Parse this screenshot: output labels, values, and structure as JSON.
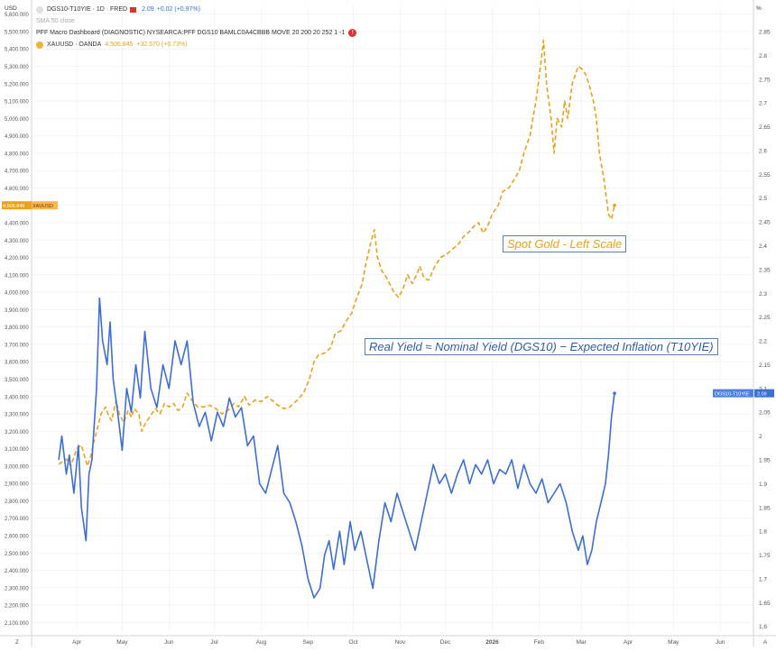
{
  "legend": {
    "main_symbol": "DGS10-T10YIE · 1D · FRED",
    "main_value": "2.09",
    "main_change": "+0.02 (+0.97%)",
    "sma_label": "SMA 50 close",
    "indicator_label": "PFF Macro Dashboard (DIAGNOSTIC) NYSEARCA:PFF DGS10 BAMLC0A4CBBB MOVE 20 200 20 252 1 -1",
    "indicator_error": "!",
    "xau_symbol": "XAUUSD · OANDA",
    "xau_value": "4,506.845",
    "xau_change": "+32.570 (+0.73%)"
  },
  "annotations": {
    "gold": "Spot Gold - Left Scale",
    "real_yield": "Real Yield ≈ Nominal Yield (DGS10) − Expected Inflation (T10YIE)"
  },
  "colors": {
    "gold": "#e8a21c",
    "real_yield": "#3b6fd6",
    "axis_text": "#555555",
    "grid": "#eeeeee"
  },
  "chart_data": {
    "type": "line",
    "left_axis": {
      "unit": "USD",
      "ticks": [
        "2,100.000",
        "2,200.000",
        "2,300.000",
        "2,400.000",
        "2,500.000",
        "2,600.000",
        "2,700.000",
        "2,800.000",
        "2,900.000",
        "3,000.000",
        "3,100.000",
        "3,200.000",
        "3,300.000",
        "3,400.000",
        "3,500.000",
        "3,600.000",
        "3,700.000",
        "3,800.000",
        "3,900.000",
        "4,000.000",
        "4,100.000",
        "4,200.000",
        "4,300.000",
        "4,400.000",
        "4,500.000",
        "4,600.000",
        "4,700.000",
        "4,800.000",
        "4,900.000",
        "5,000.000",
        "5,100.000",
        "5,200.000",
        "5,300.000",
        "5,400.000",
        "5,500.000",
        "5,600.000"
      ],
      "range": [
        2050,
        5650
      ]
    },
    "right_axis": {
      "unit": "%",
      "ticks": [
        "1.6",
        "1.65",
        "1.7",
        "1.75",
        "1.8",
        "1.85",
        "1.9",
        "1.95",
        "2",
        "2.05",
        "2.1",
        "2.15",
        "2.2",
        "2.25",
        "2.3",
        "2.35",
        "2.4",
        "2.45",
        "2.5",
        "2.55",
        "2.6",
        "2.65",
        "2.7",
        "2.75",
        "2.8",
        "2.85"
      ],
      "range": [
        1.59,
        2.905
      ]
    },
    "x_axis": {
      "ticks": [
        "Apr",
        "May",
        "Jun",
        "Jul",
        "Aug",
        "Sep",
        "Oct",
        "Nov",
        "Dec",
        "2026",
        "Feb",
        "Mar",
        "Apr",
        "May",
        "Jun"
      ],
      "left_label": "Z",
      "right_label": "A"
    },
    "series": [
      {
        "name": "XAUUSD",
        "axis": "left",
        "style": "dashed",
        "last_label": "4,506.845",
        "tag": "XAUUSD",
        "x": [
          "2025-03-20",
          "2025-03-25",
          "2025-03-28",
          "2025-04-01",
          "2025-04-04",
          "2025-04-08",
          "2025-04-10",
          "2025-04-12",
          "2025-04-15",
          "2025-04-17",
          "2025-04-20",
          "2025-04-22",
          "2025-04-24",
          "2025-04-27",
          "2025-04-29",
          "2025-05-02",
          "2025-05-05",
          "2025-05-07",
          "2025-05-09",
          "2025-05-12",
          "2025-05-14",
          "2025-05-16",
          "2025-05-19",
          "2025-05-23",
          "2025-05-26",
          "2025-05-29",
          "2025-06-01",
          "2025-06-04",
          "2025-06-07",
          "2025-06-10",
          "2025-06-13",
          "2025-06-16",
          "2025-06-20",
          "2025-06-24",
          "2025-06-28",
          "2025-07-02",
          "2025-07-06",
          "2025-07-10",
          "2025-07-14",
          "2025-07-17",
          "2025-07-21",
          "2025-07-24",
          "2025-07-28",
          "2025-08-01",
          "2025-08-05",
          "2025-08-08",
          "2025-08-12",
          "2025-08-16",
          "2025-08-20",
          "2025-08-25",
          "2025-08-29",
          "2025-09-02",
          "2025-09-05",
          "2025-09-08",
          "2025-09-12",
          "2025-09-16",
          "2025-09-19",
          "2025-09-23",
          "2025-09-26",
          "2025-09-30",
          "2025-10-03",
          "2025-10-07",
          "2025-10-09",
          "2025-10-13",
          "2025-10-15",
          "2025-10-17",
          "2025-10-20",
          "2025-10-22",
          "2025-10-25",
          "2025-10-28",
          "2025-10-31",
          "2025-11-03",
          "2025-11-06",
          "2025-11-09",
          "2025-11-12",
          "2025-11-14",
          "2025-11-17",
          "2025-11-20",
          "2025-11-24",
          "2025-11-28",
          "2025-12-02",
          "2025-12-06",
          "2025-12-10",
          "2025-12-13",
          "2025-12-17",
          "2025-12-20",
          "2025-12-23",
          "2025-12-26",
          "2025-12-29",
          "2026-01-01",
          "2026-01-05",
          "2026-01-08",
          "2026-01-12",
          "2026-01-15",
          "2026-01-19",
          "2026-01-22",
          "2026-01-26",
          "2026-01-28",
          "2026-01-30",
          "2026-02-02",
          "2026-02-04",
          "2026-02-06",
          "2026-02-09",
          "2026-02-11",
          "2026-02-13",
          "2026-02-16",
          "2026-02-18",
          "2026-02-20",
          "2026-02-23",
          "2026-02-25",
          "2026-02-27",
          "2026-03-02",
          "2026-03-04",
          "2026-03-06",
          "2026-03-09",
          "2026-03-11",
          "2026-03-13",
          "2026-03-16",
          "2026-03-19",
          "2026-03-21",
          "2026-03-23"
        ],
        "y": [
          3010,
          3040,
          3000,
          3100,
          3120,
          3000,
          3050,
          3130,
          3230,
          3300,
          3340,
          3290,
          3260,
          3380,
          3300,
          3250,
          3320,
          3280,
          3330,
          3300,
          3200,
          3240,
          3280,
          3330,
          3300,
          3360,
          3340,
          3360,
          3320,
          3340,
          3420,
          3380,
          3340,
          3340,
          3350,
          3330,
          3300,
          3320,
          3360,
          3340,
          3400,
          3350,
          3380,
          3370,
          3400,
          3380,
          3350,
          3330,
          3340,
          3380,
          3420,
          3500,
          3600,
          3640,
          3650,
          3680,
          3760,
          3780,
          3830,
          3880,
          3960,
          4050,
          4150,
          4300,
          4360,
          4200,
          4120,
          4100,
          4050,
          4000,
          3970,
          4020,
          4100,
          4050,
          4100,
          4150,
          4080,
          4070,
          4150,
          4200,
          4220,
          4250,
          4280,
          4320,
          4350,
          4380,
          4400,
          4340,
          4380,
          4450,
          4500,
          4580,
          4600,
          4640,
          4700,
          4800,
          4900,
          5000,
          5100,
          5300,
          5450,
          5200,
          5000,
          4800,
          5000,
          4950,
          5100,
          5000,
          5200,
          5250,
          5300,
          5280,
          5250,
          5200,
          5100,
          5000,
          4800,
          4650,
          4450,
          4420,
          4500
        ]
      },
      {
        "name": "DGS10-T10YIE",
        "axis": "right",
        "style": "solid",
        "last_label": "2.09",
        "tag": "DGS10-T10YIE",
        "x": [
          "2025-03-20",
          "2025-03-22",
          "2025-03-25",
          "2025-03-27",
          "2025-03-30",
          "2025-04-02",
          "2025-04-04",
          "2025-04-07",
          "2025-04-09",
          "2025-04-11",
          "2025-04-14",
          "2025-04-16",
          "2025-04-18",
          "2025-04-21",
          "2025-04-23",
          "2025-04-25",
          "2025-04-28",
          "2025-05-01",
          "2025-05-04",
          "2025-05-07",
          "2025-05-10",
          "2025-05-13",
          "2025-05-16",
          "2025-05-20",
          "2025-05-24",
          "2025-05-28",
          "2025-06-01",
          "2025-06-05",
          "2025-06-09",
          "2025-06-13",
          "2025-06-17",
          "2025-06-21",
          "2025-06-25",
          "2025-06-29",
          "2025-07-03",
          "2025-07-07",
          "2025-07-11",
          "2025-07-15",
          "2025-07-19",
          "2025-07-23",
          "2025-07-27",
          "2025-07-31",
          "2025-08-04",
          "2025-08-08",
          "2025-08-12",
          "2025-08-16",
          "2025-08-20",
          "2025-08-24",
          "2025-08-28",
          "2025-09-01",
          "2025-09-05",
          "2025-09-09",
          "2025-09-12",
          "2025-09-15",
          "2025-09-18",
          "2025-09-22",
          "2025-09-25",
          "2025-09-29",
          "2025-10-02",
          "2025-10-06",
          "2025-10-10",
          "2025-10-14",
          "2025-10-18",
          "2025-10-22",
          "2025-10-26",
          "2025-10-30",
          "2025-11-03",
          "2025-11-07",
          "2025-11-11",
          "2025-11-15",
          "2025-11-19",
          "2025-11-23",
          "2025-11-27",
          "2025-12-01",
          "2025-12-05",
          "2025-12-09",
          "2025-12-13",
          "2025-12-17",
          "2025-12-21",
          "2025-12-25",
          "2025-12-29",
          "2026-01-02",
          "2026-01-06",
          "2026-01-10",
          "2026-01-14",
          "2026-01-18",
          "2026-01-22",
          "2026-01-26",
          "2026-01-30",
          "2026-02-03",
          "2026-02-07",
          "2026-02-11",
          "2026-02-15",
          "2026-02-19",
          "2026-02-23",
          "2026-02-27",
          "2026-03-02",
          "2026-03-05",
          "2026-03-08",
          "2026-03-11",
          "2026-03-14",
          "2026-03-17",
          "2026-03-19",
          "2026-03-21",
          "2026-03-23"
        ],
        "y": [
          1.95,
          2.0,
          1.92,
          1.96,
          1.88,
          1.98,
          1.85,
          1.78,
          1.92,
          1.95,
          2.1,
          2.29,
          2.2,
          2.15,
          2.24,
          2.12,
          2.05,
          1.97,
          2.1,
          2.05,
          2.15,
          2.08,
          2.22,
          2.1,
          2.06,
          2.15,
          2.1,
          2.2,
          2.15,
          2.2,
          2.07,
          2.02,
          2.05,
          1.99,
          2.05,
          2.02,
          2.08,
          2.04,
          2.06,
          1.98,
          2.0,
          1.9,
          1.88,
          1.93,
          1.98,
          1.88,
          1.86,
          1.82,
          1.77,
          1.7,
          1.66,
          1.68,
          1.75,
          1.78,
          1.72,
          1.8,
          1.73,
          1.82,
          1.76,
          1.8,
          1.74,
          1.68,
          1.78,
          1.86,
          1.82,
          1.88,
          1.84,
          1.8,
          1.76,
          1.82,
          1.88,
          1.94,
          1.9,
          1.92,
          1.88,
          1.92,
          1.95,
          1.9,
          1.94,
          1.92,
          1.95,
          1.9,
          1.93,
          1.92,
          1.95,
          1.89,
          1.94,
          1.9,
          1.88,
          1.91,
          1.86,
          1.88,
          1.9,
          1.86,
          1.8,
          1.76,
          1.79,
          1.73,
          1.76,
          1.82,
          1.86,
          1.9,
          1.96,
          2.04,
          2.09
        ]
      }
    ]
  }
}
